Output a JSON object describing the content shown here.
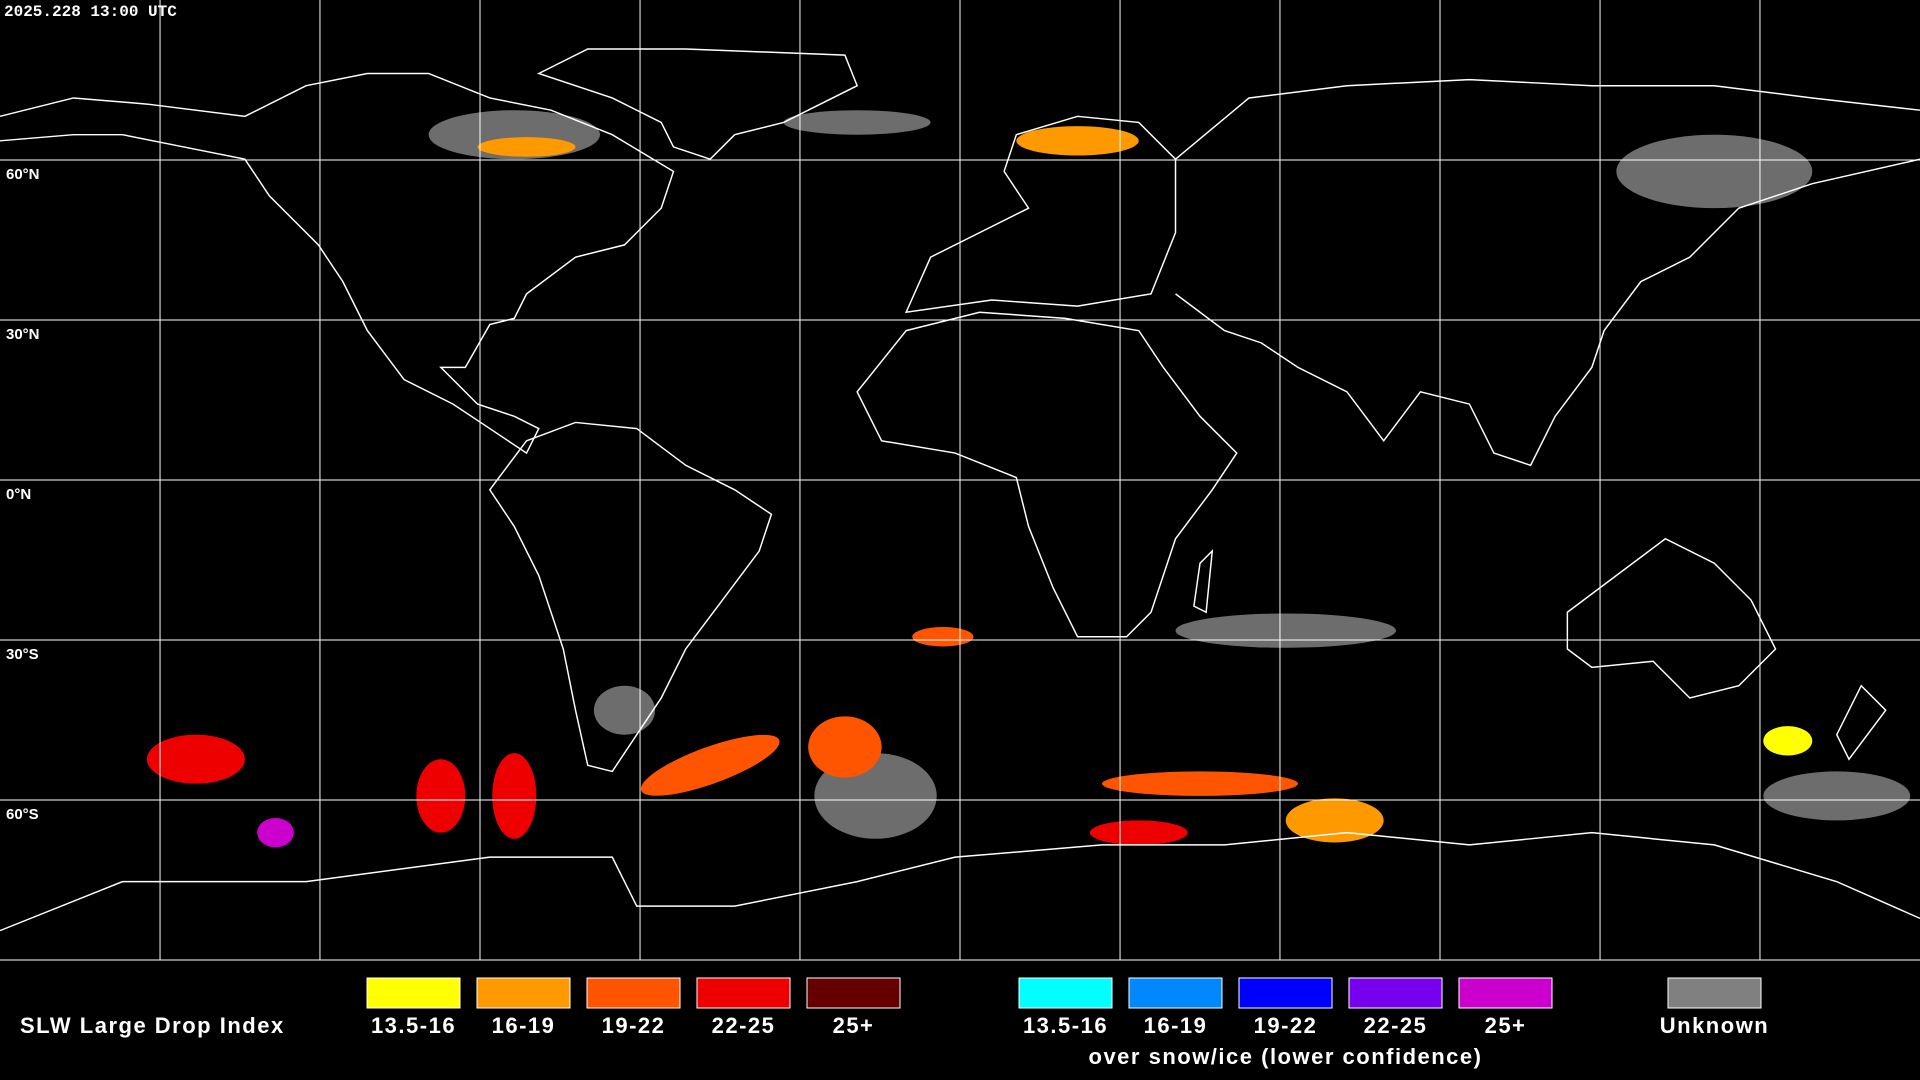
{
  "header": {
    "timestamp": "2025.228 13:00 UTC"
  },
  "map": {
    "latitude_labels": [
      "60°N",
      "30°N",
      "0°N",
      "30°S",
      "60°S"
    ]
  },
  "legend": {
    "title": "SLW Large Drop Index",
    "groups": [
      {
        "items": [
          {
            "label": "13.5-16",
            "color": "#ffff00"
          },
          {
            "label": "16-19",
            "color": "#ff9900"
          },
          {
            "label": "19-22",
            "color": "#ff5500"
          },
          {
            "label": "22-25",
            "color": "#ee0000"
          },
          {
            "label": "25+",
            "color": "#660000"
          }
        ]
      },
      {
        "items": [
          {
            "label": "13.5-16",
            "color": "#00ffff"
          },
          {
            "label": "16-19",
            "color": "#0088ff"
          },
          {
            "label": "19-22",
            "color": "#0000ff"
          },
          {
            "label": "22-25",
            "color": "#7700ee"
          },
          {
            "label": "25+",
            "color": "#cc00cc"
          }
        ],
        "caption": "over snow/ice (lower confidence)"
      },
      {
        "items": [
          {
            "label": "Unknown",
            "color": "#808080"
          }
        ]
      }
    ]
  }
}
